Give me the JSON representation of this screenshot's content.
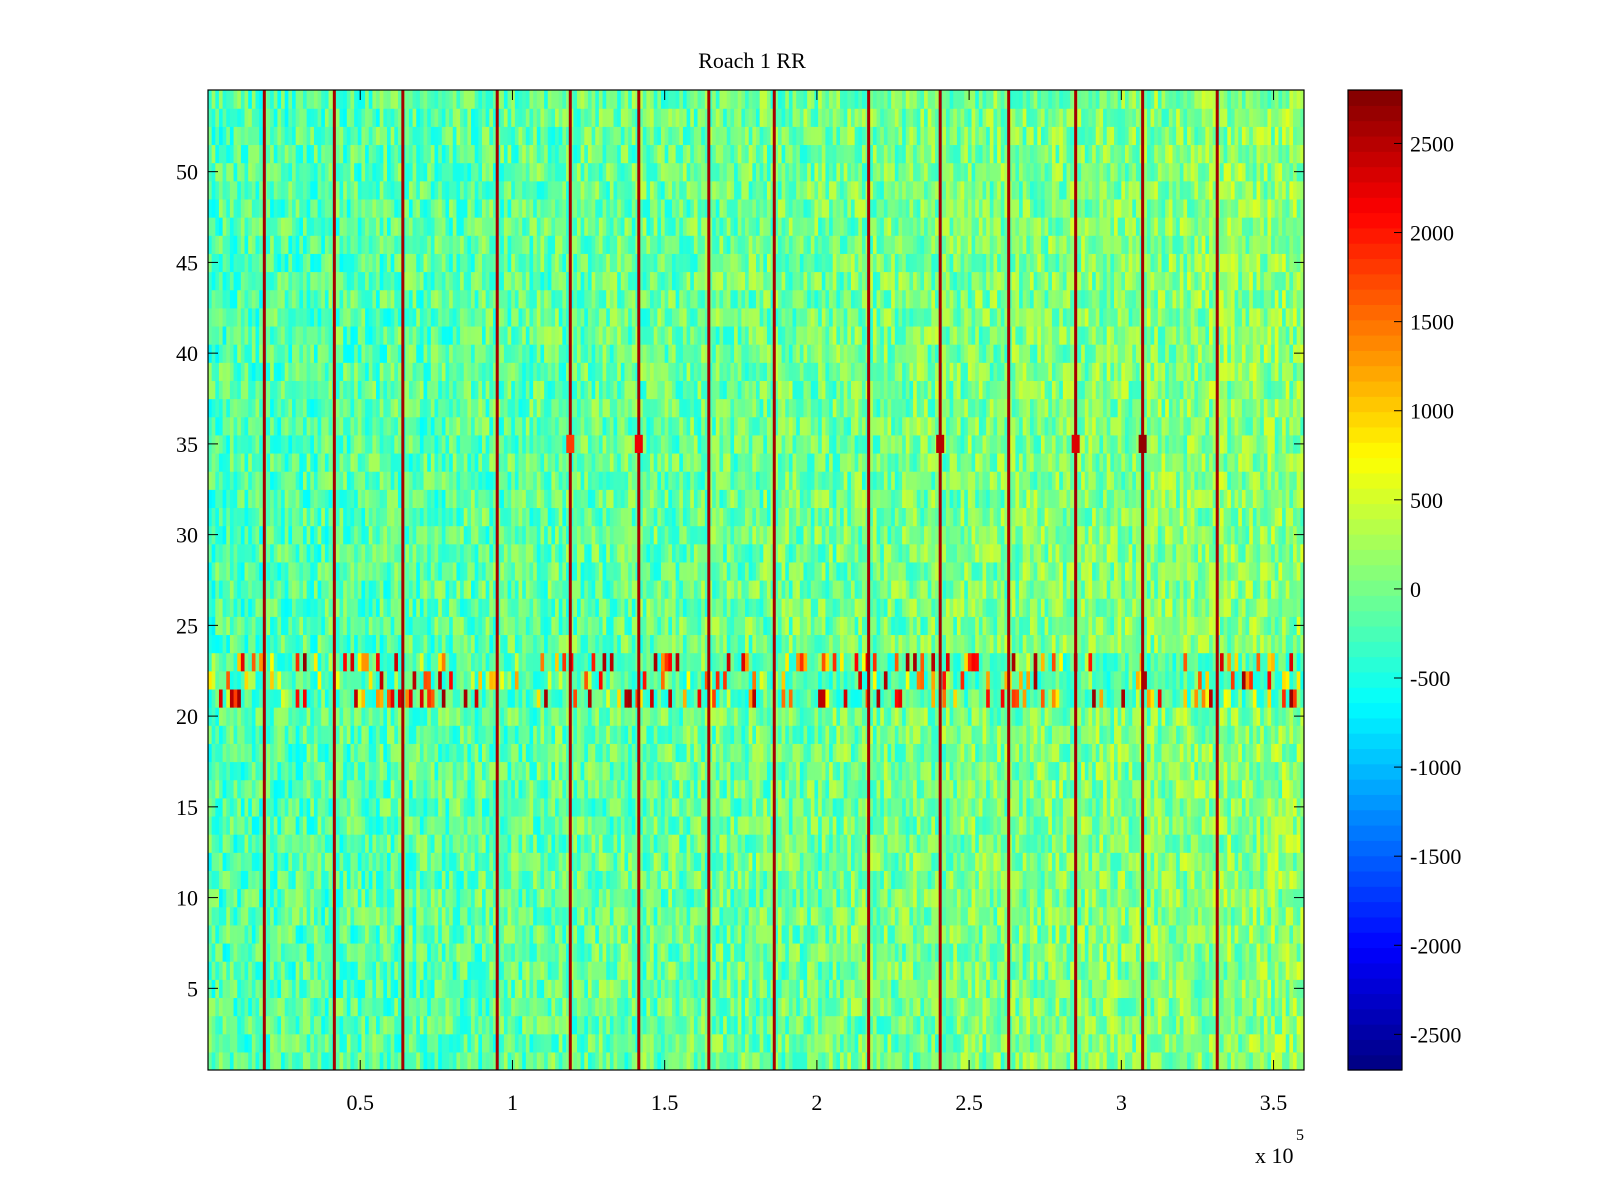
{
  "chart_data": {
    "type": "heatmap",
    "title": "Roach 1 RR",
    "xlabel": "",
    "ylabel": "",
    "x_range": [
      0,
      360000
    ],
    "y_range": [
      0.5,
      54.5
    ],
    "x_ticks": [
      {
        "value": 50000,
        "label": "0.5"
      },
      {
        "value": 100000,
        "label": "1"
      },
      {
        "value": 150000,
        "label": "1.5"
      },
      {
        "value": 200000,
        "label": "2"
      },
      {
        "value": 250000,
        "label": "2.5"
      },
      {
        "value": 300000,
        "label": "3"
      },
      {
        "value": 350000,
        "label": "3.5"
      }
    ],
    "x_multiplier": {
      "base": "x 10",
      "exponent": "5"
    },
    "y_ticks": [
      {
        "value": 5,
        "label": "5"
      },
      {
        "value": 10,
        "label": "10"
      },
      {
        "value": 15,
        "label": "15"
      },
      {
        "value": 20,
        "label": "20"
      },
      {
        "value": 25,
        "label": "25"
      },
      {
        "value": 30,
        "label": "30"
      },
      {
        "value": 35,
        "label": "35"
      },
      {
        "value": 40,
        "label": "40"
      },
      {
        "value": 45,
        "label": "45"
      },
      {
        "value": 50,
        "label": "50"
      }
    ],
    "colorbar": {
      "colormap": "jet",
      "range": [
        -2700,
        2800
      ],
      "ticks": [
        {
          "value": 2500,
          "label": "2500"
        },
        {
          "value": 2000,
          "label": "2000"
        },
        {
          "value": 1500,
          "label": "1500"
        },
        {
          "value": 1000,
          "label": "1000"
        },
        {
          "value": 500,
          "label": "500"
        },
        {
          "value": 0,
          "label": "0"
        },
        {
          "value": -500,
          "label": "-500"
        },
        {
          "value": -1000,
          "label": "-1000"
        },
        {
          "value": -1500,
          "label": "-1500"
        },
        {
          "value": -2000,
          "label": "-2000"
        },
        {
          "value": -2500,
          "label": "-2500"
        }
      ]
    },
    "num_channels": 54,
    "background_level_range": [
      -700,
      500
    ],
    "vertical_events_x": [
      18500,
      41500,
      64000,
      95000,
      119000,
      141500,
      164500,
      186000,
      217000,
      240500,
      263000,
      285000,
      307000,
      331500
    ],
    "vertical_event_level": 2600,
    "band_channels": [
      21,
      22,
      23
    ],
    "band_level_range": [
      -600,
      2700
    ],
    "hot_spots": [
      {
        "x": 119000,
        "channel": 35,
        "value": 1800
      },
      {
        "x": 141500,
        "channel": 35,
        "value": 2200
      },
      {
        "x": 240500,
        "channel": 35,
        "value": 2500
      },
      {
        "x": 285000,
        "channel": 35,
        "value": 2300
      },
      {
        "x": 307000,
        "channel": 35,
        "value": 2700
      }
    ]
  }
}
